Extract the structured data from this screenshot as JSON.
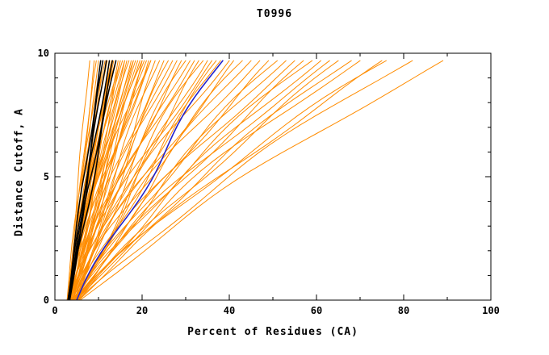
{
  "chart_data": {
    "type": "line",
    "title": "T0996",
    "xlabel": "Percent of Residues (CA)",
    "ylabel": "Distance Cutoff, A",
    "xlim": [
      0,
      100
    ],
    "ylim": [
      0,
      10
    ],
    "xticks": [
      0,
      20,
      40,
      60,
      80,
      100
    ],
    "yticks": [
      0,
      5,
      10
    ],
    "x_minor_step": 10,
    "y_minor_step": 1,
    "grid": false,
    "legend_position": "none",
    "curve_y_top": 9.7,
    "curve_format": "[start_x_percent_at_cutoff0, x_percent_at_cutoff_9.7, bend]",
    "colors": {
      "orange": "#ff8c00",
      "black": "#000000",
      "blue": "#2222cc"
    },
    "groups": [
      {
        "name": "orange-models",
        "color_key": "orange",
        "stroke_width": 1,
        "curves": [
          [
            3,
            8,
            0.1
          ],
          [
            3.2,
            9,
            0
          ],
          [
            2.8,
            9.5,
            0.2
          ],
          [
            3.5,
            10,
            -0.1
          ],
          [
            3,
            10.5,
            0.15
          ],
          [
            3.3,
            11,
            0
          ],
          [
            2.9,
            11.5,
            0.1
          ],
          [
            3.6,
            12,
            0.2
          ],
          [
            3.1,
            12.5,
            -0.15
          ],
          [
            3.4,
            13,
            0.1
          ],
          [
            3,
            13.5,
            0
          ],
          [
            3.2,
            14,
            0.25
          ],
          [
            3.7,
            14.5,
            0.1
          ],
          [
            2.8,
            15,
            -0.1
          ],
          [
            3.1,
            15.5,
            0.2
          ],
          [
            3.5,
            16,
            0
          ],
          [
            3,
            16.5,
            0.1
          ],
          [
            3.3,
            17,
            0.3
          ],
          [
            3.6,
            17.5,
            -0.2
          ],
          [
            3.1,
            18,
            0.1
          ],
          [
            2.9,
            18.5,
            0.2
          ],
          [
            3.4,
            19,
            0
          ],
          [
            3.2,
            19.5,
            0.15
          ],
          [
            3.8,
            20,
            -0.1
          ],
          [
            3,
            20.5,
            0.2
          ],
          [
            3.3,
            21,
            0.1
          ],
          [
            3.6,
            21.5,
            0
          ],
          [
            3.1,
            22,
            0.25
          ],
          [
            3.4,
            23,
            -0.15
          ],
          [
            2.9,
            24,
            0.1
          ],
          [
            3.2,
            12,
            0.4
          ],
          [
            3.5,
            13,
            0.35
          ],
          [
            3,
            14,
            0.45
          ],
          [
            3.3,
            15,
            0.3
          ],
          [
            3.1,
            16,
            0.4
          ],
          [
            3.6,
            18,
            0.35
          ],
          [
            3.2,
            20,
            0.3
          ],
          [
            3.4,
            22,
            0.4
          ],
          [
            3.5,
            25,
            0.2
          ],
          [
            4,
            26,
            0.3
          ],
          [
            3.2,
            27,
            0.1
          ],
          [
            4.5,
            28,
            0.35
          ],
          [
            3.8,
            29,
            0.2
          ],
          [
            4.2,
            30,
            0.4
          ],
          [
            3.5,
            31,
            0.15
          ],
          [
            4,
            32,
            0.3
          ],
          [
            4.8,
            33,
            0.2
          ],
          [
            3.6,
            34,
            0.35
          ],
          [
            4.3,
            35,
            0.1
          ],
          [
            3.9,
            36,
            0.3
          ],
          [
            4.6,
            37,
            0.25
          ],
          [
            4,
            38,
            0.15
          ],
          [
            4.4,
            40,
            0.3
          ],
          [
            3.7,
            41,
            0.2
          ],
          [
            4.1,
            43,
            0.35
          ],
          [
            4.5,
            45,
            0.25
          ],
          [
            4,
            47,
            0.3
          ],
          [
            4.5,
            49,
            0.2
          ],
          [
            5,
            51,
            0.35
          ],
          [
            4.2,
            53,
            0.25
          ],
          [
            4.8,
            55,
            0.3
          ],
          [
            5.2,
            57,
            0.2
          ],
          [
            4.5,
            59,
            0.35
          ],
          [
            5,
            61,
            0.25
          ],
          [
            4.3,
            63,
            0.3
          ],
          [
            5.5,
            65,
            0.2
          ],
          [
            4.5,
            68,
            0.25
          ],
          [
            5,
            70,
            0.3
          ],
          [
            5.5,
            75,
            0.2
          ],
          [
            4.8,
            76,
            0.3
          ],
          [
            5.2,
            82,
            0.25
          ],
          [
            5.8,
            89,
            0.2
          ]
        ]
      },
      {
        "name": "black-models",
        "color_key": "black",
        "stroke_width": 1.5,
        "curves": [
          [
            3,
            10.5,
            0.05
          ],
          [
            3.2,
            11,
            0.1
          ],
          [
            3,
            11.8,
            0
          ],
          [
            3.4,
            12.5,
            0.1
          ],
          [
            3.1,
            13.2,
            0.05
          ],
          [
            3.3,
            14,
            0.08
          ]
        ]
      },
      {
        "name": "blue-model",
        "color_key": "blue",
        "stroke_width": 1.6,
        "curves": [
          [
            5,
            38.5,
            0.15
          ]
        ]
      }
    ]
  }
}
